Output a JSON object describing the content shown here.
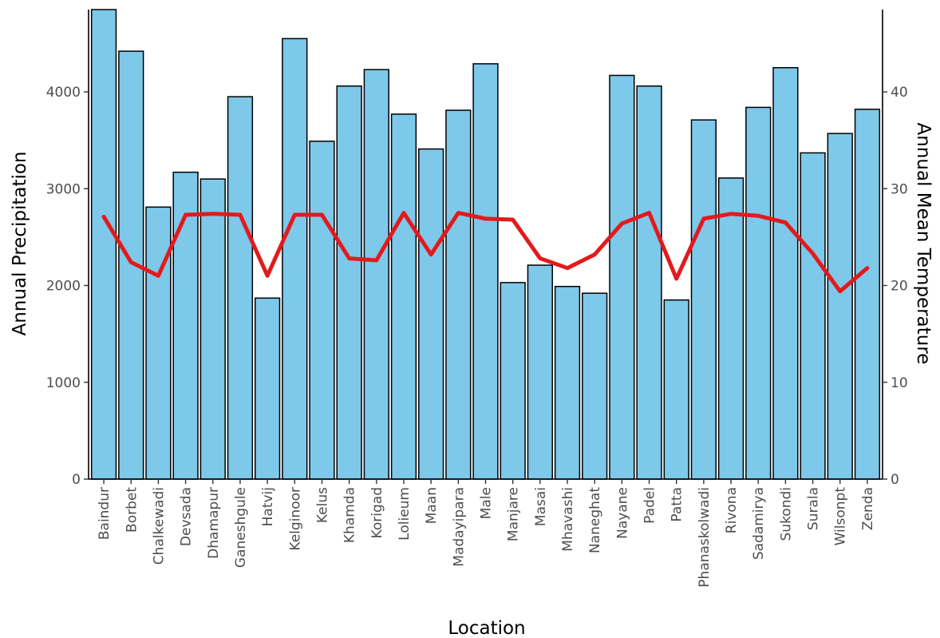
{
  "chart_data": {
    "type": "bar",
    "title": "",
    "xlabel": "Location",
    "ylabel": "Annual Precipitation",
    "y2label": "Annual Mean Temperature",
    "ylim": [
      0,
      4850
    ],
    "y2lim": [
      0,
      48.5
    ],
    "yticks": [
      0,
      1000,
      2000,
      3000,
      4000
    ],
    "y2ticks": [
      0,
      10,
      20,
      30,
      40
    ],
    "grid": false,
    "categories": [
      "Baindur",
      "Borbet",
      "Chalkewadi",
      "Devsada",
      "Dhamapur",
      "Ganeshgule",
      "Hatvij",
      "Kelginoor",
      "Kelus",
      "Khamda",
      "Korigad",
      "Lolieum",
      "Maan",
      "Madayipara",
      "Male",
      "Manjare",
      "Masai",
      "Mhavashi",
      "Naneghat",
      "Nayane",
      "Padel",
      "Patta",
      "Phanaskolwadi",
      "Rivona",
      "Sadamirya",
      "Sukondi",
      "Surala",
      "Wilsonpt",
      "Zenda"
    ],
    "series": [
      {
        "type": "bar",
        "axis": "left",
        "color": "#7ec8ea",
        "values": [
          4850,
          4420,
          2810,
          3170,
          3100,
          3950,
          1870,
          4550,
          3490,
          4060,
          4230,
          3770,
          3410,
          3810,
          4290,
          2030,
          2210,
          1990,
          1920,
          4170,
          4060,
          1850,
          3710,
          3110,
          3840,
          4250,
          3370,
          3570,
          3820
        ]
      },
      {
        "type": "line",
        "axis": "right",
        "color": "#e31a1c",
        "values": [
          27.1,
          22.4,
          21.0,
          27.3,
          27.4,
          27.3,
          21.0,
          27.3,
          27.3,
          22.8,
          22.6,
          27.5,
          23.2,
          27.5,
          26.9,
          26.8,
          22.8,
          21.8,
          23.2,
          26.4,
          27.5,
          20.7,
          26.9,
          27.4,
          27.2,
          26.5,
          23.3,
          19.4,
          21.8
        ]
      }
    ]
  }
}
